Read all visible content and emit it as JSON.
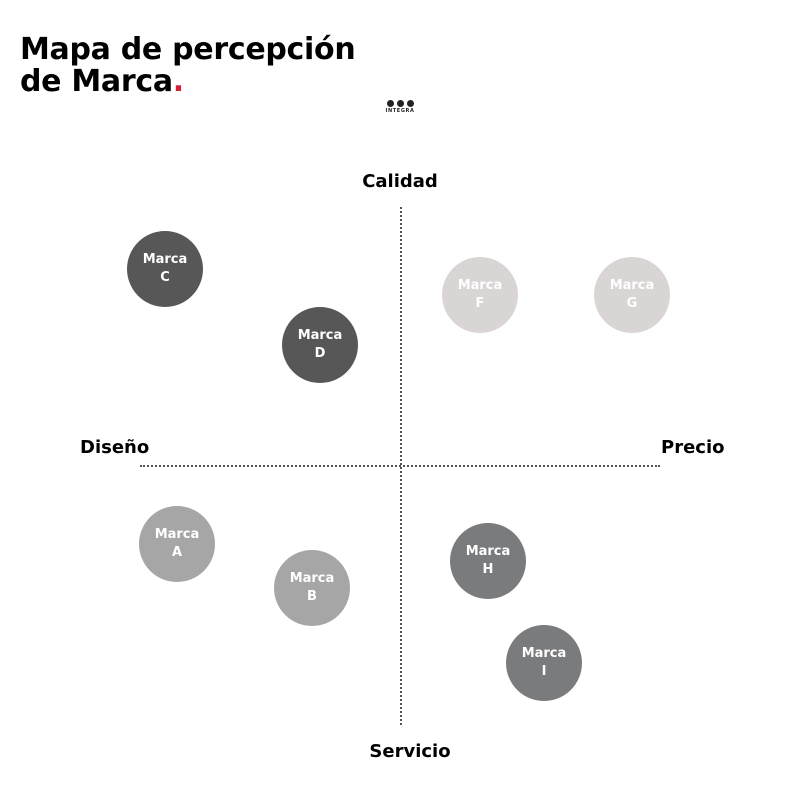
{
  "title": {
    "line1": "Mapa de percepción",
    "line2": "de Marca",
    "accent": "."
  },
  "logo": {
    "text": "INTEGRA"
  },
  "axes": {
    "top": "Calidad",
    "bottom": "Servicio",
    "left": "Diseño",
    "right": "Precio"
  },
  "brands": [
    {
      "label": "Marca C",
      "color": "#575757"
    },
    {
      "label": "Marca D",
      "color": "#575757"
    },
    {
      "label": "Marca F",
      "color": "#d9d5d4"
    },
    {
      "label": "Marca G",
      "color": "#d9d5d4"
    },
    {
      "label": "Marca A",
      "color": "#a6a6a6"
    },
    {
      "label": "Marca B",
      "color": "#a6a6a6"
    },
    {
      "label": "Marca H",
      "color": "#7a7b7d"
    },
    {
      "label": "Marca I",
      "color": "#7a7b7d"
    }
  ],
  "colors": {
    "accent": "#d61f3a"
  }
}
